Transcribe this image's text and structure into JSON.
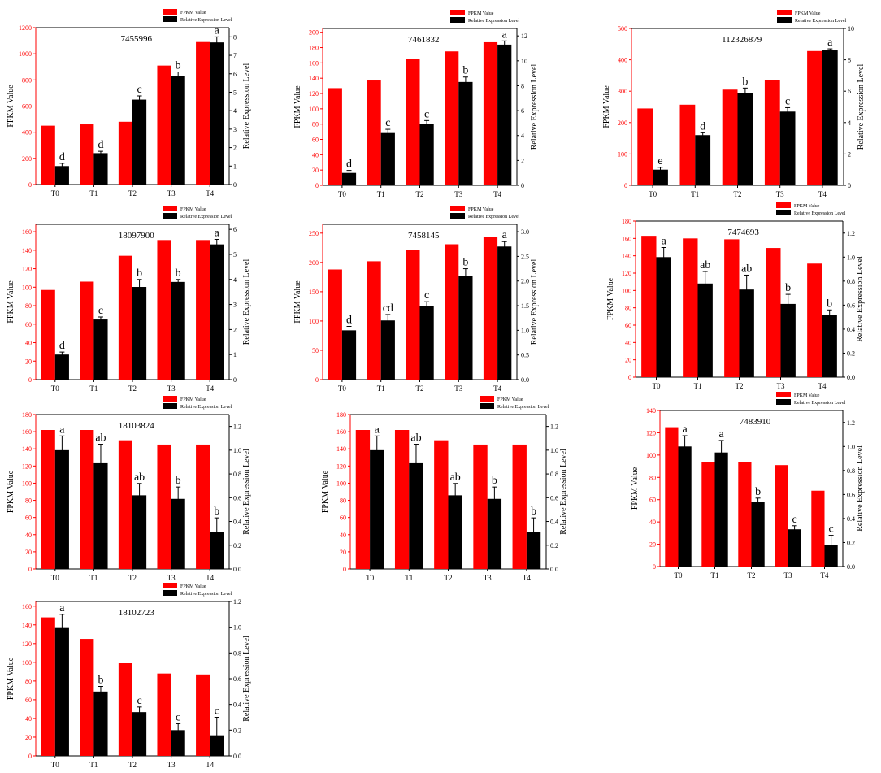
{
  "colors": {
    "fpkm": "#ff0000",
    "rel": "#000000",
    "left_axis": "#ff0000",
    "right_axis": "#000000"
  },
  "legend_labels": [
    "FPKM Value",
    "Relative Expression Level"
  ],
  "axis_labels": {
    "left": "FPKM Value",
    "right": "Relative Expression Level"
  },
  "chart_data": [
    {
      "type": "bar",
      "title": "7455996",
      "categories": [
        "T0",
        "T1",
        "T2",
        "T3",
        "T4"
      ],
      "series": [
        {
          "name": "FPKM Value",
          "axis": "left",
          "values": [
            450,
            460,
            480,
            910,
            1090
          ]
        },
        {
          "name": "Relative Expression Level",
          "axis": "right",
          "values": [
            1.0,
            1.7,
            4.6,
            5.9,
            7.7
          ],
          "errors": [
            0.15,
            0.1,
            0.2,
            0.2,
            0.3
          ],
          "letters": [
            "d",
            "d",
            "c",
            "b",
            "a"
          ]
        }
      ],
      "ylabel": "FPKM Value",
      "y2label": "Relative Expression Level",
      "ylim": [
        0,
        1200
      ],
      "y2lim": [
        0,
        8.5
      ],
      "yticks": [
        0,
        200,
        400,
        600,
        800,
        1000,
        1200
      ],
      "y2ticks": [
        0,
        1,
        2,
        3,
        4,
        5,
        6,
        7,
        8
      ],
      "legend": "top-right"
    },
    {
      "type": "bar",
      "title": "7461832",
      "categories": [
        "T0",
        "T1",
        "T2",
        "T3",
        "T4"
      ],
      "series": [
        {
          "name": "FPKM Value",
          "axis": "left",
          "values": [
            127,
            137,
            165,
            175,
            187
          ]
        },
        {
          "name": "Relative Expression Level",
          "axis": "right",
          "values": [
            1.0,
            4.2,
            4.9,
            8.3,
            11.3
          ],
          "errors": [
            0.2,
            0.3,
            0.3,
            0.4,
            0.3
          ],
          "letters": [
            "d",
            "c",
            "c",
            "b",
            "a"
          ]
        }
      ],
      "ylabel": "FPKM Value",
      "y2label": "Relative Expression Level",
      "ylim": [
        0,
        205
      ],
      "y2lim": [
        0,
        12.6
      ],
      "yticks": [
        0,
        20,
        40,
        60,
        80,
        100,
        120,
        140,
        160,
        180,
        200
      ],
      "y2ticks": [
        0,
        2,
        4,
        6,
        8,
        10,
        12
      ],
      "legend": "top-right"
    },
    {
      "type": "bar",
      "title": "112326879",
      "categories": [
        "T0",
        "T1",
        "T2",
        "T3",
        "T4"
      ],
      "series": [
        {
          "name": "FPKM Value",
          "axis": "left",
          "values": [
            245,
            257,
            305,
            335,
            428
          ]
        },
        {
          "name": "Relative Expression Level",
          "axis": "right",
          "values": [
            1.0,
            3.2,
            5.9,
            4.7,
            8.6
          ],
          "errors": [
            0.15,
            0.15,
            0.3,
            0.25,
            0.1
          ],
          "letters": [
            "e",
            "d",
            "b",
            "c",
            "a"
          ]
        }
      ],
      "ylabel": "FPKM Value",
      "y2label": "Relative Expression Level",
      "ylim": [
        0,
        500
      ],
      "y2lim": [
        0,
        10
      ],
      "yticks": [
        0,
        100,
        200,
        300,
        400,
        500
      ],
      "y2ticks": [
        0,
        2,
        4,
        6,
        8,
        10
      ],
      "legend": "top-right"
    },
    {
      "type": "bar",
      "title": "18097900",
      "categories": [
        "T0",
        "T1",
        "T2",
        "T3",
        "T4"
      ],
      "series": [
        {
          "name": "FPKM Value",
          "axis": "left",
          "values": [
            97,
            106,
            134,
            151,
            151
          ]
        },
        {
          "name": "Relative Expression Level",
          "axis": "right",
          "values": [
            1.0,
            2.4,
            3.7,
            3.9,
            5.4
          ],
          "errors": [
            0.1,
            0.1,
            0.3,
            0.1,
            0.2
          ],
          "letters": [
            "d",
            "c",
            "b",
            "b",
            "a"
          ]
        }
      ],
      "ylabel": "FPKM Value",
      "y2label": "Relative Expression Level",
      "ylim": [
        0,
        168
      ],
      "y2lim": [
        0,
        6.2
      ],
      "yticks": [
        0,
        20,
        40,
        60,
        80,
        100,
        120,
        140,
        160
      ],
      "y2ticks": [
        0,
        1,
        2,
        3,
        4,
        5,
        6
      ],
      "legend": "top-right"
    },
    {
      "type": "bar",
      "title": "7458145",
      "categories": [
        "T0",
        "T1",
        "T2",
        "T3",
        "T4"
      ],
      "series": [
        {
          "name": "FPKM Value",
          "axis": "left",
          "values": [
            188,
            202,
            221,
            231,
            243
          ]
        },
        {
          "name": "Relative Expression Level",
          "axis": "right",
          "values": [
            1.0,
            1.2,
            1.5,
            2.1,
            2.7
          ],
          "errors": [
            0.08,
            0.12,
            0.08,
            0.15,
            0.1
          ],
          "letters": [
            "d",
            "cd",
            "c",
            "b",
            "a"
          ]
        }
      ],
      "ylabel": "FPKM Value",
      "y2label": "Relative Expression Level",
      "ylim": [
        0,
        265
      ],
      "y2lim": [
        0,
        3.15
      ],
      "yticks": [
        0,
        50,
        100,
        150,
        200,
        250
      ],
      "y2ticks": [
        0.0,
        0.5,
        1.0,
        1.5,
        2.0,
        2.5,
        3.0
      ],
      "legend": "top-right"
    },
    {
      "type": "bar",
      "title": "7474693",
      "categories": [
        "T0",
        "T1",
        "T2",
        "T3",
        "T4"
      ],
      "series": [
        {
          "name": "FPKM Value",
          "axis": "left",
          "values": [
            163,
            160,
            159,
            149,
            131
          ]
        },
        {
          "name": "Relative Expression Level",
          "axis": "right",
          "values": [
            1.0,
            0.78,
            0.73,
            0.61,
            0.52
          ],
          "errors": [
            0.08,
            0.1,
            0.12,
            0.08,
            0.04
          ],
          "letters": [
            "a",
            "ab",
            "ab",
            "b",
            "b"
          ]
        }
      ],
      "ylabel": "FPKM Value",
      "y2label": "Relative Expression Level",
      "ylim": [
        0,
        180
      ],
      "y2lim": [
        0,
        1.3
      ],
      "yticks": [
        0,
        20,
        40,
        60,
        80,
        100,
        120,
        140,
        160,
        180
      ],
      "y2ticks": [
        0.0,
        0.2,
        0.4,
        0.6,
        0.8,
        1.0,
        1.2
      ],
      "legend": "top-right"
    },
    {
      "type": "bar",
      "title": "18103824",
      "categories": [
        "T0",
        "T1",
        "T2",
        "T3",
        "T4"
      ],
      "series": [
        {
          "name": "FPKM Value",
          "axis": "left",
          "values": [
            162,
            162,
            150,
            145,
            145
          ]
        },
        {
          "name": "Relative Expression Level",
          "axis": "right",
          "values": [
            1.0,
            0.89,
            0.62,
            0.59,
            0.31
          ],
          "errors": [
            0.12,
            0.16,
            0.1,
            0.1,
            0.12
          ],
          "letters": [
            "a",
            "ab",
            "ab",
            "b",
            "b"
          ]
        }
      ],
      "ylabel": "FPKM Value",
      "y2label": "Relative Expression Level",
      "ylim": [
        0,
        180
      ],
      "y2lim": [
        0,
        1.3
      ],
      "yticks": [
        0,
        20,
        40,
        60,
        80,
        100,
        120,
        140,
        160,
        180
      ],
      "y2ticks": [
        0.0,
        0.2,
        0.4,
        0.6,
        0.8,
        1.0,
        1.2
      ],
      "legend": "top-right"
    },
    {
      "type": "bar",
      "title": "",
      "categories": [
        "T0",
        "T1",
        "T2",
        "T3",
        "T4"
      ],
      "series": [
        {
          "name": "FPKM Value",
          "axis": "left",
          "values": [
            162,
            162,
            150,
            145,
            145
          ]
        },
        {
          "name": "Relative Expression Level",
          "axis": "right",
          "values": [
            1.0,
            0.89,
            0.62,
            0.59,
            0.31
          ],
          "errors": [
            0.12,
            0.16,
            0.1,
            0.1,
            0.12
          ],
          "letters": [
            "a",
            "ab",
            "ab",
            "b",
            "b"
          ]
        }
      ],
      "ylabel": "FPKM Value",
      "y2label": "Relative Expression Level",
      "ylim": [
        0,
        180
      ],
      "y2lim": [
        0,
        1.3
      ],
      "yticks": [
        0,
        20,
        40,
        60,
        80,
        100,
        120,
        140,
        160,
        180
      ],
      "y2ticks": [
        0.0,
        0.2,
        0.4,
        0.6,
        0.8,
        1.0,
        1.2
      ],
      "legend": "top-right"
    },
    {
      "type": "bar",
      "title": "7483910",
      "categories": [
        "T0",
        "T1",
        "T2",
        "T3",
        "T4"
      ],
      "series": [
        {
          "name": "FPKM Value",
          "axis": "left",
          "values": [
            125,
            94,
            94,
            91,
            68
          ]
        },
        {
          "name": "Relative Expression Level",
          "axis": "right",
          "values": [
            1.0,
            0.95,
            0.54,
            0.31,
            0.18
          ],
          "errors": [
            0.09,
            0.1,
            0.03,
            0.03,
            0.08
          ],
          "letters": [
            "a",
            "a",
            "b",
            "c",
            "c"
          ]
        }
      ],
      "ylabel": "FPKM Value",
      "y2label": "Relative Expression Level",
      "ylim": [
        0,
        140
      ],
      "y2lim": [
        0,
        1.3
      ],
      "yticks": [
        0,
        20,
        40,
        60,
        80,
        100,
        120,
        140
      ],
      "y2ticks": [
        0.0,
        0.2,
        0.4,
        0.6,
        0.8,
        1.0,
        1.2
      ],
      "legend": "top-right"
    },
    {
      "type": "bar",
      "title": "18102723",
      "categories": [
        "T0",
        "T1",
        "T2",
        "T3",
        "T4"
      ],
      "series": [
        {
          "name": "FPKM Value",
          "axis": "left",
          "values": [
            148,
            125,
            99,
            88,
            87
          ]
        },
        {
          "name": "Relative Expression Level",
          "axis": "right",
          "values": [
            1.0,
            0.5,
            0.34,
            0.2,
            0.16
          ],
          "errors": [
            0.1,
            0.04,
            0.04,
            0.05,
            0.14
          ],
          "letters": [
            "a",
            "b",
            "c",
            "c",
            "c"
          ]
        }
      ],
      "ylabel": "FPKM Value",
      "y2label": "Relative Expression Level",
      "ylim": [
        0,
        165
      ],
      "y2lim": [
        0,
        1.2
      ],
      "yticks": [
        0,
        20,
        40,
        60,
        80,
        100,
        120,
        140,
        160
      ],
      "y2ticks": [
        0.0,
        0.2,
        0.4,
        0.6,
        0.8,
        1.0,
        1.2
      ],
      "legend": "top-right"
    }
  ]
}
